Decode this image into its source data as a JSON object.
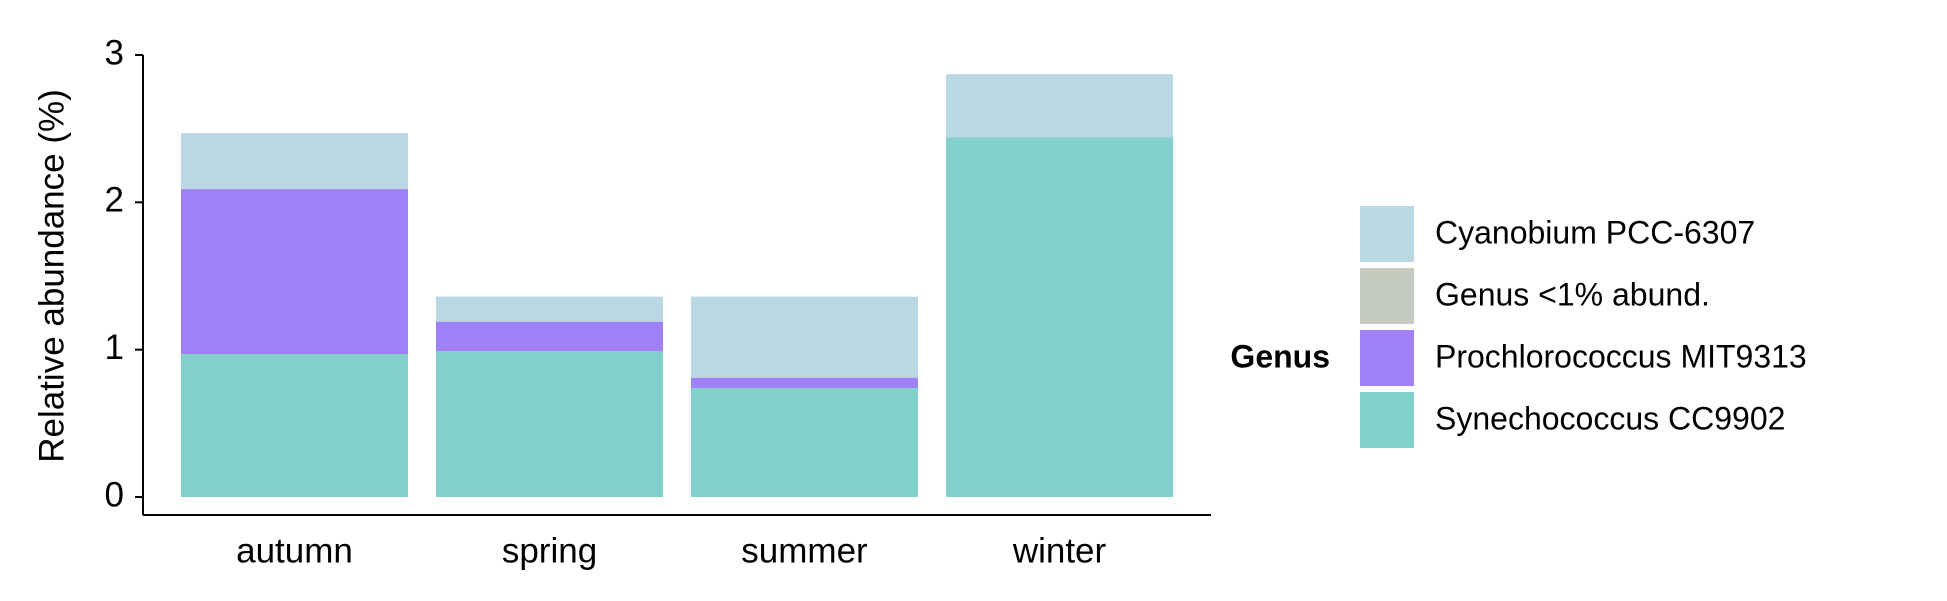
{
  "chart_data": {
    "type": "stacked_bar",
    "y_label": "Relative abundance (%)",
    "categories": [
      "autumn",
      "spring",
      "summer",
      "winter"
    ],
    "legend_title": "Genus",
    "series": [
      {
        "name": "Cyanobium PCC-6307",
        "color": "#bad8e3",
        "values": [
          0.38,
          0.17,
          0.55,
          0.43
        ]
      },
      {
        "name": "Genus <1% abund.",
        "color": "#c5cbc0",
        "values": [
          0,
          0,
          0,
          0
        ]
      },
      {
        "name": "Prochlorococcus MIT9313",
        "color": "#9f80f7",
        "values": [
          1.12,
          0.2,
          0.07,
          0
        ]
      },
      {
        "name": "Synechococcus CC9902",
        "color": "#82d0cb",
        "values": [
          0.97,
          0.99,
          0.74,
          2.44
        ]
      }
    ],
    "ylim": [
      0,
      3
    ],
    "yticks": [
      0,
      1,
      2,
      3
    ],
    "legend": "right"
  }
}
